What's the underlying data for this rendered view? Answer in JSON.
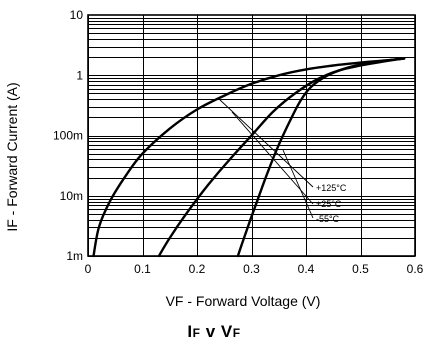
{
  "chart_data": {
    "type": "line",
    "title_main": "I",
    "title_sub1": "F",
    "title_mid": " v V",
    "title_sub2": "F",
    "xlabel": "VF - Forward Voltage (V)",
    "ylabel": "IF - Forward Current (A)",
    "x_scale": "linear",
    "y_scale": "log",
    "xlim": [
      0,
      0.6
    ],
    "ylim": [
      0.001,
      10
    ],
    "x_ticks": [
      0,
      0.1,
      0.2,
      0.3,
      0.4,
      0.5,
      0.6
    ],
    "x_tick_labels": [
      "0",
      "0.1",
      "0.2",
      "0.3",
      "0.4",
      "0.5",
      "0.6"
    ],
    "y_ticks": [
      0.001,
      0.01,
      0.1,
      1,
      10
    ],
    "y_tick_labels": [
      "1m",
      "10m",
      "100m",
      "1",
      "10"
    ],
    "grid": true,
    "series": [
      {
        "name": "+125°C",
        "x": [
          0.01,
          0.02,
          0.04,
          0.07,
          0.1,
          0.15,
          0.2,
          0.25,
          0.3,
          0.35,
          0.4,
          0.45,
          0.5,
          0.55,
          0.58
        ],
        "y": [
          0.001,
          0.003,
          0.008,
          0.022,
          0.05,
          0.13,
          0.27,
          0.46,
          0.72,
          1.0,
          1.25,
          1.45,
          1.62,
          1.78,
          1.9
        ]
      },
      {
        "name": "+25°C",
        "x": [
          0.13,
          0.15,
          0.18,
          0.22,
          0.26,
          0.3,
          0.34,
          0.38,
          0.42,
          0.46,
          0.5,
          0.54,
          0.58
        ],
        "y": [
          0.001,
          0.002,
          0.005,
          0.015,
          0.04,
          0.1,
          0.25,
          0.5,
          0.85,
          1.2,
          1.45,
          1.68,
          1.9
        ]
      },
      {
        "name": "-55°C",
        "x": [
          0.275,
          0.29,
          0.31,
          0.33,
          0.35,
          0.37,
          0.39,
          0.41,
          0.44,
          0.47,
          0.5,
          0.54,
          0.58
        ],
        "y": [
          0.001,
          0.0025,
          0.008,
          0.025,
          0.07,
          0.17,
          0.38,
          0.65,
          1.0,
          1.28,
          1.5,
          1.72,
          1.9
        ]
      }
    ]
  }
}
